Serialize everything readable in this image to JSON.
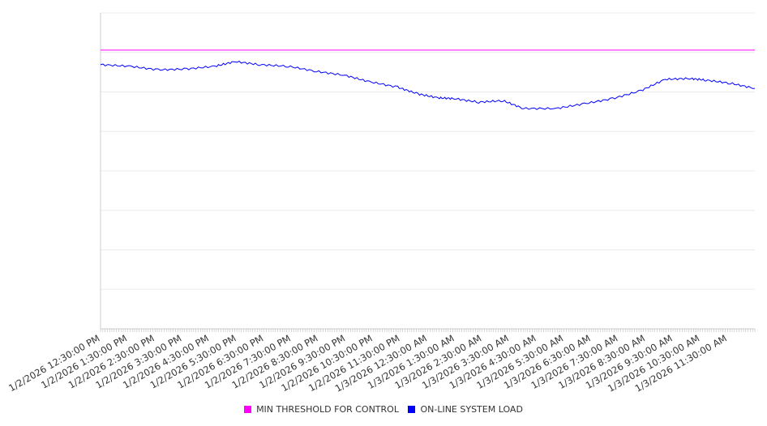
{
  "chart_data": {
    "type": "line",
    "title": "",
    "xlabel": "",
    "ylabel": "",
    "ylim": [
      0,
      8
    ],
    "grid": true,
    "legend_placement": "bottom-center",
    "x_tick_labels": [
      "1/2/2026 12:30:00 PM",
      "1/2/2026 1:30:00 PM",
      "1/2/2026 2:30:00 PM",
      "1/2/2026 3:30:00 PM",
      "1/2/2026 4:30:00 PM",
      "1/2/2026 5:30:00 PM",
      "1/2/2026 6:30:00 PM",
      "1/2/2026 7:30:00 PM",
      "1/2/2026 8:30:00 PM",
      "1/2/2026 9:30:00 PM",
      "1/2/2026 10:30:00 PM",
      "1/2/2026 11:30:00 PM",
      "1/3/2026 12:30:00 AM",
      "1/3/2026 1:30:00 AM",
      "1/3/2026 2:30:00 AM",
      "1/3/2026 3:30:00 AM",
      "1/3/2026 4:30:00 AM",
      "1/3/2026 5:30:00 AM",
      "1/3/2026 6:30:00 AM",
      "1/3/2026 7:30:00 AM",
      "1/3/2026 8:30:00 AM",
      "1/3/2026 9:30:00 AM",
      "1/3/2026 10:30:00 AM",
      "1/3/2026 11:30:00 AM"
    ],
    "x_range_hours": [
      0,
      24
    ],
    "series": [
      {
        "name": "MIN THRESHOLD FOR CONTROL",
        "color": "#ff00ff",
        "x": [
          0,
          24
        ],
        "values": [
          7.06,
          7.06
        ]
      },
      {
        "name": "ON-LINE SYSTEM LOAD",
        "color": "#0000ff",
        "x": [
          0,
          1.07,
          2.11,
          3.15,
          4.2,
          4.94,
          5.83,
          6.88,
          7.92,
          8.96,
          9.85,
          10.9,
          11.64,
          12.38,
          12.98,
          13.87,
          14.76,
          15.51,
          16.7,
          17.74,
          18.78,
          19.82,
          20.71,
          21.61,
          22.2,
          23.1,
          24
        ],
        "values": [
          6.69,
          6.65,
          6.56,
          6.58,
          6.65,
          6.77,
          6.69,
          6.65,
          6.52,
          6.42,
          6.26,
          6.12,
          5.95,
          5.85,
          5.83,
          5.74,
          5.78,
          5.58,
          5.58,
          5.7,
          5.83,
          6.03,
          6.32,
          6.34,
          6.3,
          6.22,
          6.09
        ]
      }
    ]
  }
}
